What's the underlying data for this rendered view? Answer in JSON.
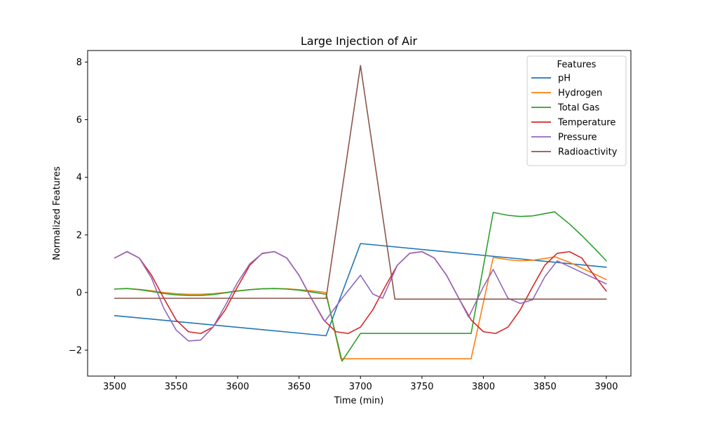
{
  "chart_data": {
    "type": "line",
    "title": "Large Injection of Air",
    "xlabel": "Time (min)",
    "ylabel": "Normalized Features",
    "xlim": [
      3478,
      3920
    ],
    "ylim": [
      -2.9,
      8.4
    ],
    "xticks": [
      3500,
      3550,
      3600,
      3650,
      3700,
      3750,
      3800,
      3850,
      3900
    ],
    "yticks": [
      -2,
      0,
      2,
      4,
      6,
      8
    ],
    "ytick_labels": [
      "−2",
      "0",
      "2",
      "4",
      "6",
      "8"
    ],
    "grid": false,
    "legend": {
      "title": "Features",
      "placement": "top-right"
    },
    "series": [
      {
        "name": "pH",
        "color": "#1f77b4",
        "x": [
          3500,
          3672,
          3700,
          3900
        ],
        "y": [
          -0.8,
          -1.5,
          1.7,
          0.88
        ]
      },
      {
        "name": "Hydrogen",
        "color": "#ff7f0e",
        "x": [
          3500,
          3510,
          3520,
          3530,
          3540,
          3550,
          3560,
          3570,
          3580,
          3590,
          3600,
          3610,
          3620,
          3630,
          3640,
          3650,
          3660,
          3672,
          3684,
          3700,
          3790,
          3808,
          3820,
          3830,
          3840,
          3850,
          3858,
          3870,
          3880,
          3890,
          3900
        ],
        "y": [
          0.12,
          0.14,
          0.11,
          0.06,
          0.0,
          -0.04,
          -0.06,
          -0.06,
          -0.04,
          0.0,
          0.06,
          0.1,
          0.13,
          0.14,
          0.13,
          0.1,
          0.06,
          0.0,
          -2.3,
          -2.3,
          -2.3,
          1.22,
          1.14,
          1.1,
          1.12,
          1.18,
          1.24,
          1.05,
          0.85,
          0.65,
          0.45
        ]
      },
      {
        "name": "Total Gas",
        "color": "#2ca02c",
        "x": [
          3500,
          3510,
          3520,
          3530,
          3540,
          3550,
          3560,
          3570,
          3580,
          3590,
          3600,
          3610,
          3620,
          3630,
          3640,
          3650,
          3660,
          3672,
          3685,
          3700,
          3790,
          3808,
          3820,
          3830,
          3840,
          3850,
          3858,
          3870,
          3880,
          3890,
          3900
        ],
        "y": [
          0.12,
          0.14,
          0.1,
          0.04,
          -0.03,
          -0.08,
          -0.1,
          -0.1,
          -0.07,
          -0.01,
          0.05,
          0.1,
          0.13,
          0.14,
          0.12,
          0.08,
          0.02,
          -0.06,
          -2.38,
          -1.42,
          -1.42,
          2.78,
          2.68,
          2.64,
          2.66,
          2.74,
          2.8,
          2.38,
          1.98,
          1.55,
          1.1
        ]
      },
      {
        "name": "Temperature",
        "color": "#d62728",
        "x": [
          3500,
          3510,
          3520,
          3530,
          3540,
          3550,
          3560,
          3570,
          3580,
          3590,
          3600,
          3610,
          3620,
          3630,
          3640,
          3650,
          3660,
          3670,
          3680,
          3690,
          3700,
          3710,
          3720,
          3730,
          3740,
          3750,
          3760,
          3770,
          3780,
          3790,
          3800,
          3810,
          3820,
          3830,
          3840,
          3850,
          3860,
          3870,
          3880,
          3890,
          3900
        ],
        "y": [
          1.2,
          1.42,
          1.2,
          0.6,
          -0.2,
          -0.95,
          -1.36,
          -1.42,
          -1.2,
          -0.6,
          0.2,
          0.95,
          1.36,
          1.42,
          1.2,
          0.6,
          -0.2,
          -0.95,
          -1.36,
          -1.42,
          -1.2,
          -0.6,
          0.2,
          0.95,
          1.36,
          1.42,
          1.2,
          0.6,
          -0.2,
          -0.95,
          -1.36,
          -1.42,
          -1.2,
          -0.6,
          0.2,
          0.95,
          1.36,
          1.42,
          1.2,
          0.6,
          0.05
        ]
      },
      {
        "name": "Pressure",
        "color": "#9467bd",
        "x": [
          3500,
          3510,
          3520,
          3530,
          3540,
          3550,
          3560,
          3570,
          3580,
          3590,
          3600,
          3610,
          3620,
          3630,
          3640,
          3650,
          3660,
          3671,
          3685,
          3700,
          3710,
          3718,
          3730,
          3740,
          3750,
          3760,
          3770,
          3780,
          3788,
          3800,
          3808,
          3820,
          3830,
          3840,
          3850,
          3860,
          3870,
          3880,
          3890,
          3900
        ],
        "y": [
          1.2,
          1.42,
          1.2,
          0.5,
          -0.55,
          -1.3,
          -1.68,
          -1.65,
          -1.2,
          -0.45,
          0.35,
          1.0,
          1.35,
          1.42,
          1.2,
          0.6,
          -0.2,
          -1.0,
          -0.2,
          0.6,
          -0.05,
          -0.2,
          0.95,
          1.36,
          1.42,
          1.2,
          0.6,
          -0.2,
          -0.85,
          0.2,
          0.8,
          -0.2,
          -0.38,
          -0.25,
          0.55,
          1.1,
          0.9,
          0.7,
          0.5,
          0.3
        ]
      },
      {
        "name": "Radioactivity",
        "color": "#8c564b",
        "x": [
          3500,
          3672,
          3700,
          3728,
          3900
        ],
        "y": [
          -0.2,
          -0.2,
          7.88,
          -0.23,
          -0.23
        ]
      }
    ]
  }
}
